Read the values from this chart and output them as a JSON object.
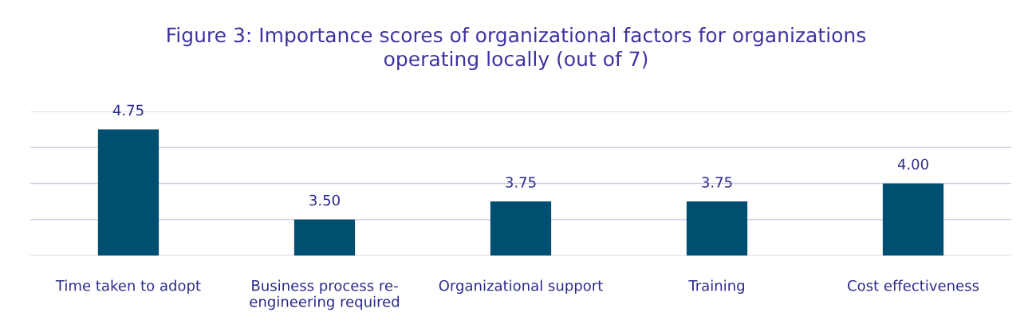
{
  "chart_data": {
    "type": "bar",
    "title": "Figure 3: Importance scores of organizational factors for organizations\noperating locally (out of 7)",
    "categories": [
      "Time taken to adopt",
      "Business process re-\nengineering required",
      "Organizational support",
      "Training",
      "Cost effectiveness"
    ],
    "values": [
      4.75,
      3.5,
      3.75,
      3.75,
      4.0
    ],
    "value_labels": [
      "4.75",
      "3.50",
      "3.75",
      "3.75",
      "4.00"
    ],
    "color": "#004f71",
    "ylim": [
      3,
      5
    ],
    "yticks": [
      {
        "value": 3,
        "label": null
      },
      {
        "value": 3.5,
        "label": null
      },
      {
        "value": 4,
        "label": null
      },
      {
        "value": 4.5,
        "label": null
      },
      {
        "value": 5,
        "label": null
      }
    ],
    "tick_labels": "x",
    "grid": "y",
    "legend": false
  }
}
